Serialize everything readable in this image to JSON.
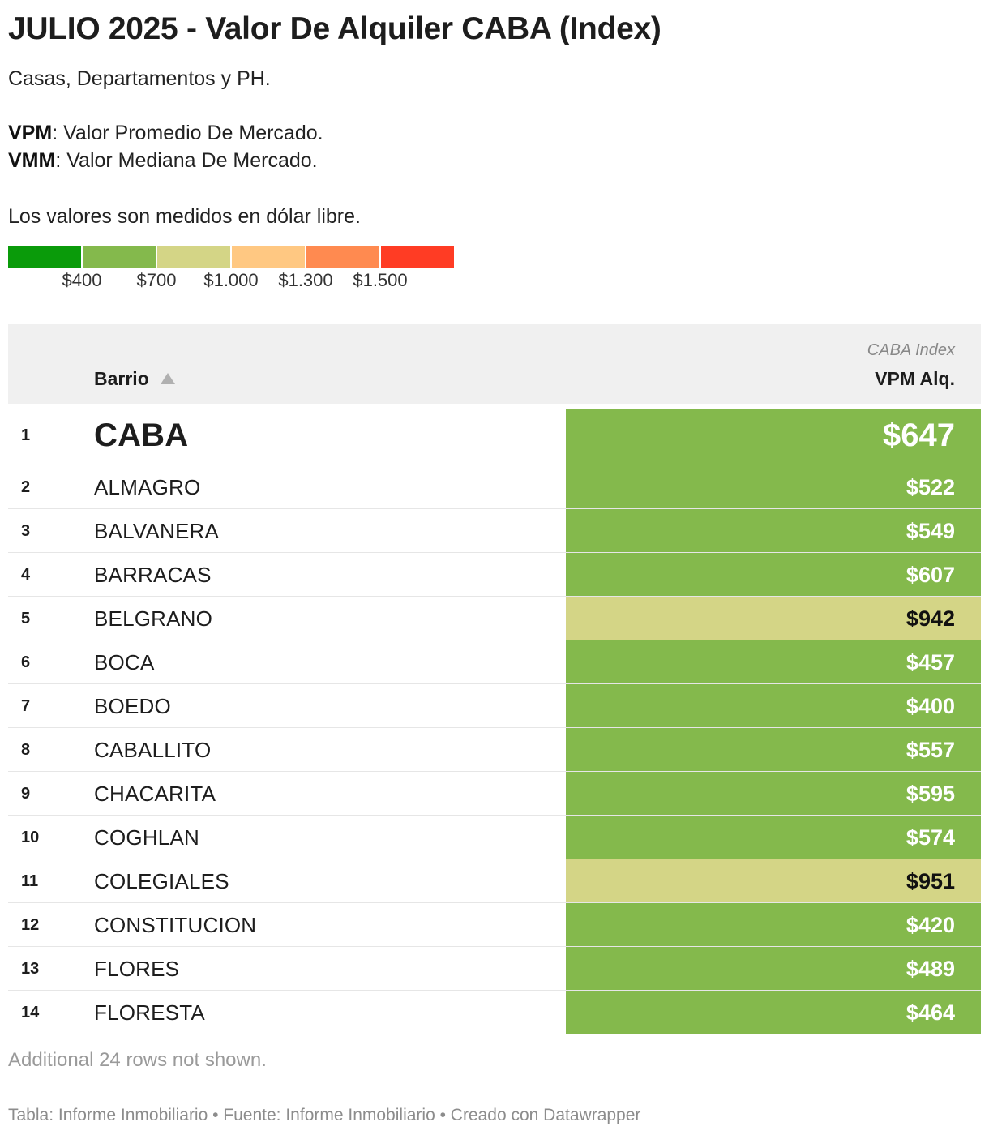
{
  "title": "JULIO 2025 - Valor De Alquiler CABA (Index)",
  "description": {
    "subtitle": "Casas, Departamentos y PH.",
    "vpm_label": "VPM",
    "vpm_text": ": Valor Promedio De Mercado.",
    "vmm_label": "VMM",
    "vmm_text": ": Valor Mediana De Mercado.",
    "currency_note": "Los valores son medidos en dólar libre."
  },
  "legend": {
    "colors": [
      "#0a9b0a",
      "#84b94c",
      "#d4d586",
      "#ffc882",
      "#ff8a50",
      "#ff3c24"
    ],
    "ticks": [
      "$400",
      "$700",
      "$1.000",
      "$1.300",
      "$1.500"
    ]
  },
  "table": {
    "col_barrio": "Barrio",
    "col_value_super": "CABA Index",
    "col_value": "VPM Alq.",
    "sort_icon": "sort-ascending-icon"
  },
  "chart_data": {
    "type": "table",
    "columns": [
      "",
      "Barrio",
      "VPM Alq."
    ],
    "rows": [
      {
        "rank": "1",
        "barrio": "CABA",
        "value": 647,
        "label": "$647"
      },
      {
        "rank": "2",
        "barrio": "ALMAGRO",
        "value": 522,
        "label": "$522"
      },
      {
        "rank": "3",
        "barrio": "BALVANERA",
        "value": 549,
        "label": "$549"
      },
      {
        "rank": "4",
        "barrio": "BARRACAS",
        "value": 607,
        "label": "$607"
      },
      {
        "rank": "5",
        "barrio": "BELGRANO",
        "value": 942,
        "label": "$942"
      },
      {
        "rank": "6",
        "barrio": "BOCA",
        "value": 457,
        "label": "$457"
      },
      {
        "rank": "7",
        "barrio": "BOEDO",
        "value": 400,
        "label": "$400"
      },
      {
        "rank": "8",
        "barrio": "CABALLITO",
        "value": 557,
        "label": "$557"
      },
      {
        "rank": "9",
        "barrio": "CHACARITA",
        "value": 595,
        "label": "$595"
      },
      {
        "rank": "10",
        "barrio": "COGHLAN",
        "value": 574,
        "label": "$574"
      },
      {
        "rank": "11",
        "barrio": "COLEGIALES",
        "value": 951,
        "label": "$951"
      },
      {
        "rank": "12",
        "barrio": "CONSTITUCION",
        "value": 420,
        "label": "$420"
      },
      {
        "rank": "13",
        "barrio": "FLORES",
        "value": 489,
        "label": "$489"
      },
      {
        "rank": "14",
        "barrio": "FLORESTA",
        "value": 464,
        "label": "$464"
      }
    ],
    "color_scale": {
      "thresholds": [
        400,
        700,
        1000,
        1300,
        1500
      ],
      "colors": [
        "#0a9b0a",
        "#84b94c",
        "#d4d586",
        "#ffc882",
        "#ff8a50",
        "#ff3c24"
      ]
    }
  },
  "rows_not_shown": "Additional 24 rows not shown.",
  "footer": "Tabla: Informe Inmobiliario • Fuente: Informe Inmobiliario • Creado con Datawrapper"
}
